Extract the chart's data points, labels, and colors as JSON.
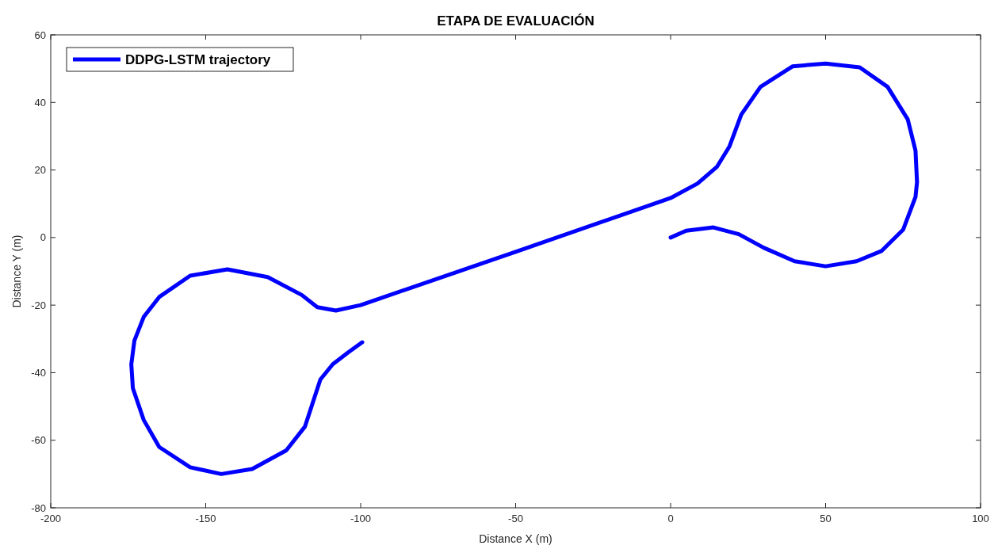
{
  "chart_data": {
    "type": "line",
    "title": "ETAPA DE EVALUACIÓN",
    "xlabel": "Distance X (m)",
    "ylabel": "Distance Y (m)",
    "xlim": [
      -200,
      100
    ],
    "ylim": [
      -80,
      60
    ],
    "xticks": [
      -200,
      -150,
      -100,
      -50,
      0,
      50,
      100
    ],
    "yticks": [
      -80,
      -60,
      -40,
      -20,
      0,
      20,
      40,
      60
    ],
    "grid": false,
    "legend": "top left",
    "line_style": "solid",
    "marker": "none",
    "series": [
      {
        "name": "DDPG-LSTM trajectory",
        "color": "#0000ff",
        "x": [
          0,
          5,
          13.8,
          22,
          30,
          40,
          50,
          60,
          68,
          75,
          79,
          79.5,
          79,
          76.5,
          70,
          61,
          50,
          39.4,
          29,
          22.8,
          19,
          15,
          8.7,
          0,
          -50,
          -100,
          -108,
          -114,
          -119,
          -130,
          -143,
          -155,
          -165,
          -170,
          -173,
          -174,
          -173.5,
          -170,
          -165,
          -155,
          -145,
          -135,
          -124,
          -118,
          -113,
          -109,
          -104,
          -99.5
        ],
        "values": [
          0,
          2,
          3,
          1,
          -3,
          -7,
          -8.5,
          -7,
          -4,
          2.3,
          12,
          16.4,
          25.8,
          35,
          44.6,
          50.4,
          51.5,
          50.7,
          44.6,
          36.4,
          27,
          21,
          16,
          11.7,
          -4.2,
          -20,
          -21.6,
          -20.6,
          -17,
          -11.7,
          -9.4,
          -11.3,
          -17.6,
          -23.5,
          -30.5,
          -37.5,
          -44.6,
          -54,
          -62,
          -68,
          -70,
          -68.5,
          -63,
          -56,
          -42,
          -37.5,
          -34,
          -31
        ]
      }
    ]
  }
}
